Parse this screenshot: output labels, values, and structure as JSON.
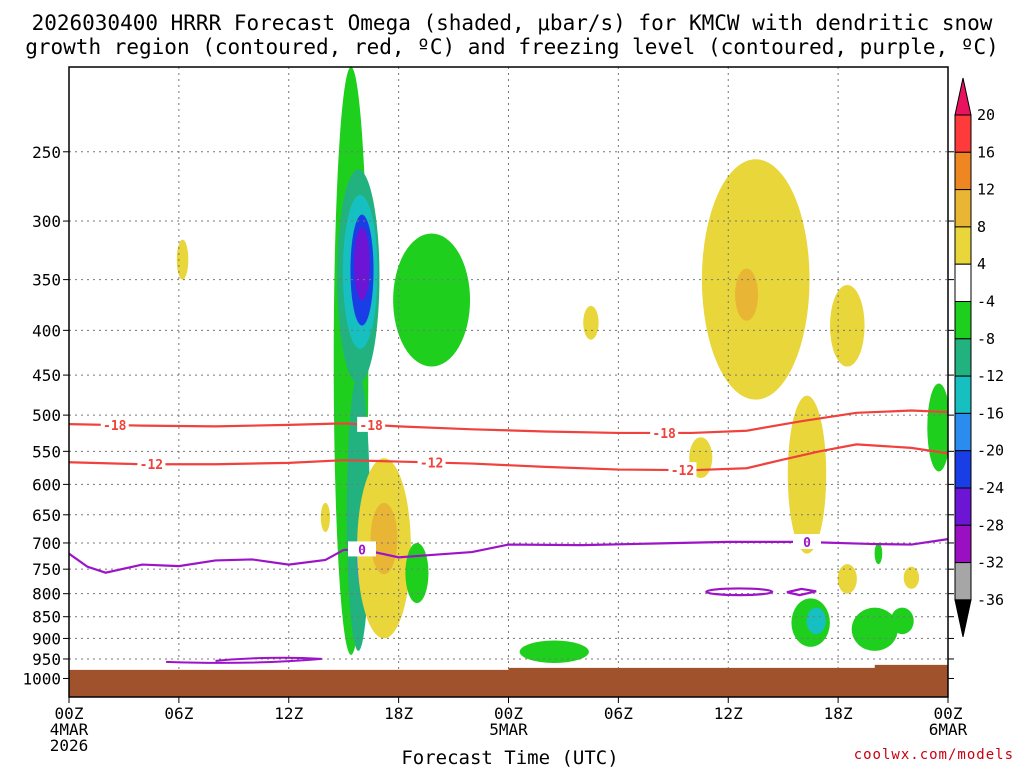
{
  "chart_data": {
    "type": "heatmap",
    "title_line1": "2026030400 HRRR Forecast Omega (shaded, μbar/s) for KMCW with dendritic snow",
    "title_line2": "growth region (contoured, red, ºC) and freezing level (contoured, purple, ºC)",
    "xlabel": "Forecast Time (UTC)",
    "x_range_hours": [
      0,
      48
    ],
    "x_ticks": [
      {
        "hour": 0,
        "line1": "00Z",
        "line2": "4MAR",
        "line3": "2026"
      },
      {
        "hour": 6,
        "line1": "06Z"
      },
      {
        "hour": 12,
        "line1": "12Z"
      },
      {
        "hour": 18,
        "line1": "18Z"
      },
      {
        "hour": 24,
        "line1": "00Z",
        "line2": "5MAR"
      },
      {
        "hour": 30,
        "line1": "06Z"
      },
      {
        "hour": 36,
        "line1": "12Z"
      },
      {
        "hour": 42,
        "line1": "18Z"
      },
      {
        "hour": 48,
        "line1": "00Z",
        "line2": "6MAR"
      }
    ],
    "y_axis": "Pressure (mb), log scale, top 200 to bottom 1050",
    "y_range_mb": [
      200,
      1050
    ],
    "y_ticks": [
      250,
      300,
      350,
      400,
      450,
      500,
      550,
      600,
      650,
      700,
      750,
      800,
      850,
      900,
      950,
      1000
    ],
    "colorbar": {
      "levels": [
        "20",
        "16",
        "12",
        "8",
        "4",
        "-4",
        "-8",
        "-12",
        "-16",
        "-20",
        "-24",
        "-28",
        "-32",
        "-36"
      ],
      "colors": [
        "#e8125e",
        "#ff3a3a",
        "#ee8722",
        "#e8b634",
        "#e8d63a",
        "#ffffff",
        "#1ecf1e",
        "#22b280",
        "#16c0c0",
        "#2b8cf0",
        "#1a3ee6",
        "#6d15d5",
        "#9a0fc2",
        "#a6a6a6",
        "#000000"
      ]
    },
    "omega_fields": [
      {
        "hour": 15.4,
        "mb_top": 200,
        "mb_bottom": 940,
        "value": -8,
        "sigma_h": 0.45
      },
      {
        "hour": 15.8,
        "mb_top": 262,
        "mb_bottom": 460,
        "value": -12,
        "sigma_h": 0.55
      },
      {
        "hour": 15.9,
        "mb_top": 280,
        "mb_bottom": 420,
        "value": -16,
        "sigma_h": 0.45
      },
      {
        "hour": 16.0,
        "mb_top": 295,
        "mb_bottom": 395,
        "value": -24,
        "sigma_h": 0.3
      },
      {
        "hour": 16.0,
        "mb_top": 305,
        "mb_bottom": 370,
        "value": -28,
        "sigma_h": 0.2
      },
      {
        "hour": 15.8,
        "mb_top": 450,
        "mb_bottom": 930,
        "value": -12,
        "sigma_h": 0.3
      },
      {
        "hour": 16.0,
        "mb_top": 660,
        "mb_bottom": 790,
        "value": -20,
        "sigma_h": 0.15
      },
      {
        "hour": 19.8,
        "mb_top": 310,
        "mb_bottom": 440,
        "value": -8,
        "sigma_h": 1.0
      },
      {
        "hour": 17.2,
        "mb_top": 560,
        "mb_bottom": 900,
        "value": 4,
        "sigma_h": 0.7
      },
      {
        "hour": 17.2,
        "mb_top": 630,
        "mb_bottom": 760,
        "value": 8,
        "sigma_h": 0.35
      },
      {
        "hour": 6.2,
        "mb_top": 315,
        "mb_bottom": 350,
        "value": 4,
        "sigma_h": 0.15
      },
      {
        "hour": 14.0,
        "mb_top": 630,
        "mb_bottom": 680,
        "value": 4,
        "sigma_h": 0.12
      },
      {
        "hour": 19.0,
        "mb_top": 700,
        "mb_bottom": 820,
        "value": -8,
        "sigma_h": 0.3
      },
      {
        "hour": 28.5,
        "mb_top": 375,
        "mb_bottom": 410,
        "value": 4,
        "sigma_h": 0.2
      },
      {
        "hour": 37.5,
        "mb_top": 255,
        "mb_bottom": 480,
        "value": 4,
        "sigma_h": 1.4
      },
      {
        "hour": 37.0,
        "mb_top": 340,
        "mb_bottom": 390,
        "value": 8,
        "sigma_h": 0.3
      },
      {
        "hour": 40.3,
        "mb_top": 475,
        "mb_bottom": 720,
        "value": 4,
        "sigma_h": 0.5
      },
      {
        "hour": 42.5,
        "mb_top": 355,
        "mb_bottom": 440,
        "value": 4,
        "sigma_h": 0.45
      },
      {
        "hour": 34.5,
        "mb_top": 530,
        "mb_bottom": 590,
        "value": 4,
        "sigma_h": 0.3
      },
      {
        "hour": 40.5,
        "mb_top": 810,
        "mb_bottom": 920,
        "value": -8,
        "sigma_h": 0.5
      },
      {
        "hour": 40.8,
        "mb_top": 830,
        "mb_bottom": 890,
        "value": -16,
        "sigma_h": 0.25
      },
      {
        "hour": 47.5,
        "mb_top": 460,
        "mb_bottom": 580,
        "value": -8,
        "sigma_h": 0.3
      },
      {
        "hour": 45.5,
        "mb_top": 830,
        "mb_bottom": 890,
        "value": -8,
        "sigma_h": 0.3
      },
      {
        "hour": 44.0,
        "mb_top": 830,
        "mb_bottom": 930,
        "value": -8,
        "sigma_h": 0.6
      },
      {
        "hour": 26.5,
        "mb_top": 905,
        "mb_bottom": 960,
        "value": -8,
        "sigma_h": 0.9
      },
      {
        "hour": 42.5,
        "mb_top": 740,
        "mb_bottom": 800,
        "value": 4,
        "sigma_h": 0.25
      },
      {
        "hour": 44.2,
        "mb_top": 700,
        "mb_bottom": 740,
        "value": -8,
        "sigma_h": 0.1
      },
      {
        "hour": 46.0,
        "mb_top": 745,
        "mb_bottom": 790,
        "value": 4,
        "sigma_h": 0.2
      }
    ],
    "red_contours": [
      {
        "label": "-18",
        "label_hours": [
          2.5,
          16.5,
          32.5
        ],
        "points": [
          [
            0,
            512
          ],
          [
            4,
            514
          ],
          [
            8,
            515
          ],
          [
            12,
            513
          ],
          [
            15,
            511
          ],
          [
            18,
            515
          ],
          [
            22,
            519
          ],
          [
            26,
            522
          ],
          [
            30,
            524
          ],
          [
            34,
            524
          ],
          [
            37,
            521
          ],
          [
            40,
            508
          ],
          [
            43,
            497
          ],
          [
            46,
            494
          ],
          [
            48,
            496
          ]
        ]
      },
      {
        "label": "-12",
        "label_hours": [
          4.5,
          19.8,
          33.5
        ],
        "points": [
          [
            0,
            566
          ],
          [
            4,
            569
          ],
          [
            8,
            569
          ],
          [
            12,
            567
          ],
          [
            15,
            563
          ],
          [
            18,
            565
          ],
          [
            22,
            568
          ],
          [
            26,
            573
          ],
          [
            30,
            577
          ],
          [
            34,
            578
          ],
          [
            37,
            575
          ],
          [
            39,
            562
          ],
          [
            41,
            550
          ],
          [
            43,
            540
          ],
          [
            46,
            545
          ],
          [
            48,
            553
          ]
        ]
      }
    ],
    "purple_contours": [
      {
        "label": "0",
        "label_hours": [
          16.0,
          40.3
        ],
        "points": [
          [
            0,
            720
          ],
          [
            1,
            745
          ],
          [
            2,
            757
          ],
          [
            4,
            741
          ],
          [
            6,
            744
          ],
          [
            8,
            733
          ],
          [
            10,
            731
          ],
          [
            12,
            741
          ],
          [
            14,
            732
          ],
          [
            15,
            713
          ],
          [
            16,
            712
          ],
          [
            18,
            727
          ],
          [
            20,
            722
          ],
          [
            22,
            717
          ],
          [
            24,
            703
          ],
          [
            28,
            704
          ],
          [
            32,
            701
          ],
          [
            36,
            698
          ],
          [
            40,
            698
          ],
          [
            44,
            702
          ],
          [
            46,
            703
          ],
          [
            48,
            693
          ]
        ]
      },
      {
        "label": "",
        "label_hours": [],
        "closed": true,
        "center": [
          36.6,
          796
        ],
        "rx_hours": 0.9,
        "dmb": 7
      },
      {
        "label": "",
        "label_hours": [],
        "points": [
          [
            39.2,
            797
          ],
          [
            40.0,
            790
          ],
          [
            40.8,
            795
          ],
          [
            39.9,
            803
          ],
          [
            39.2,
            797
          ]
        ]
      }
    ],
    "ground": {
      "label": "Terrain",
      "color": "#a0522d",
      "mb": 975
    },
    "credit": "coolwx.com/models"
  }
}
